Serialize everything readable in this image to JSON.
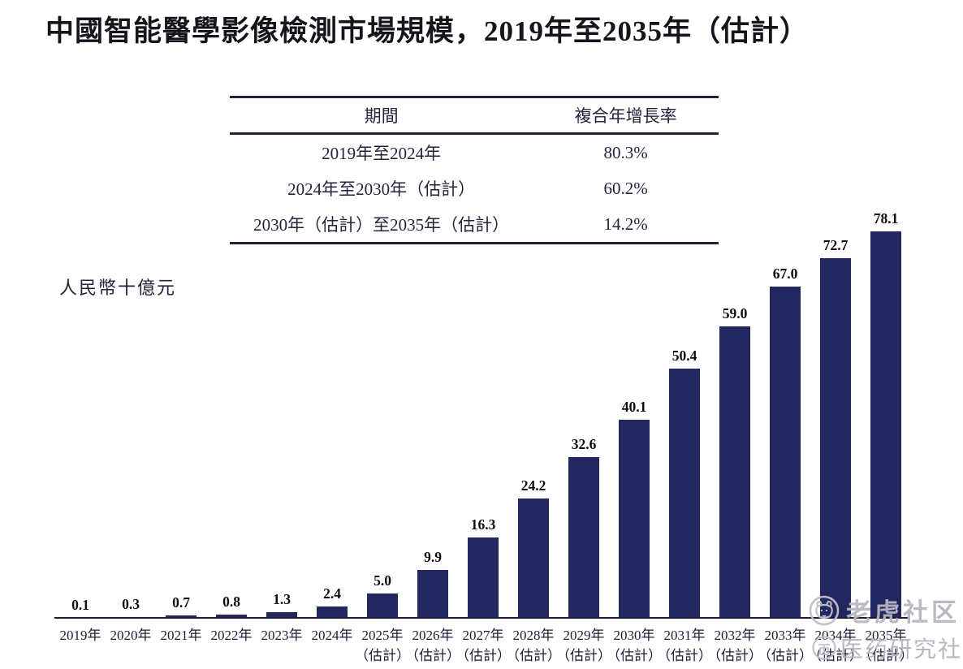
{
  "page": {
    "title": "中國智能醫學影像檢測市場規模，2019年至2035年（估計）"
  },
  "cagr_table": {
    "headers": {
      "period": "期間",
      "cagr": "複合年增長率"
    },
    "rows": [
      {
        "period": "2019年至2024年",
        "cagr": "80.3%"
      },
      {
        "period": "2024年至2030年（估計）",
        "cagr": "60.2%"
      },
      {
        "period": "2030年（估計）至2035年（估計）",
        "cagr": "14.2%"
      }
    ]
  },
  "chart_data": {
    "type": "bar",
    "title": "中國智能醫學影像檢測市場規模，2019年至2035年（估計）",
    "xlabel": "",
    "ylabel": "人民幣十億元",
    "categories": [
      "2019年",
      "2020年",
      "2021年",
      "2022年",
      "2023年",
      "2024年",
      "2025年",
      "2026年",
      "2027年",
      "2028年",
      "2029年",
      "2030年",
      "2031年",
      "2032年",
      "2033年",
      "2034年",
      "2035年"
    ],
    "estimate_suffix": "（估計）",
    "estimate_from_index": 6,
    "values": [
      0.1,
      0.3,
      0.7,
      0.8,
      1.3,
      2.4,
      5.0,
      9.9,
      16.3,
      24.2,
      32.6,
      40.1,
      50.4,
      59.0,
      67.0,
      72.7,
      78.1
    ],
    "ylim": [
      0,
      80
    ],
    "grid": false,
    "legend": "none",
    "bar_color": "#22275f",
    "value_labels_shown": true
  },
  "watermarks": {
    "tiger": {
      "label": "老虎社区",
      "icon": "tiger-circle-logo"
    },
    "research": {
      "label": "医药研究社",
      "icon": "circle-badge-logo"
    }
  },
  "colors": {
    "background": "#ffffff",
    "bar": "#22275f",
    "axis": "#1b1b33",
    "title_text": "#15151c",
    "table_text": "#23233e",
    "watermark_gray": "#b6b7c0"
  }
}
